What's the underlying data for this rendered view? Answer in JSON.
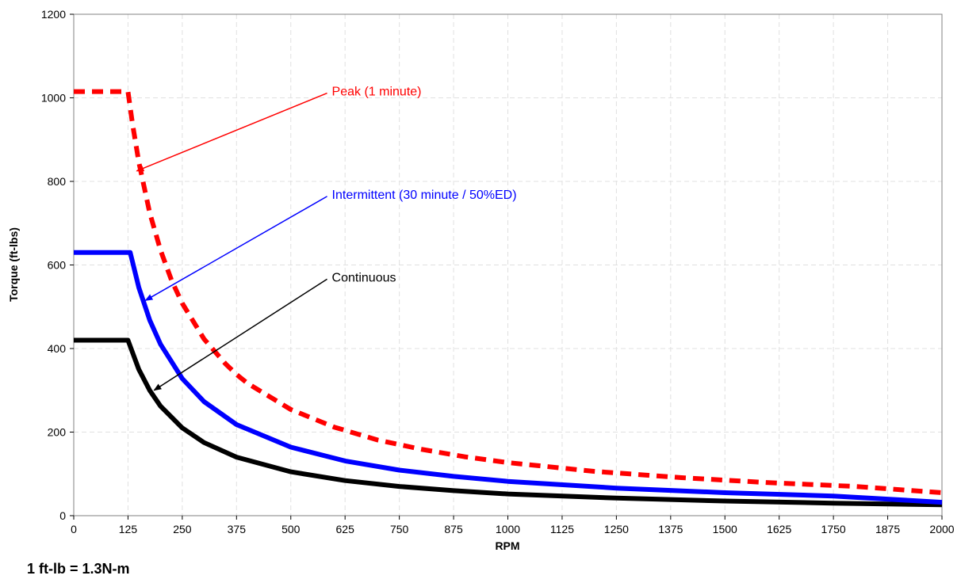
{
  "chart_data": {
    "type": "line",
    "xlabel": "RPM",
    "ylabel": "Torque (ft-lbs)",
    "xlim": [
      0,
      2000
    ],
    "ylim": [
      0,
      1200
    ],
    "x_ticks": [
      0,
      125,
      250,
      375,
      500,
      625,
      750,
      875,
      1000,
      1125,
      1250,
      1375,
      1500,
      1625,
      1750,
      1875,
      2000
    ],
    "y_ticks": [
      0,
      200,
      400,
      600,
      800,
      1000,
      1200
    ],
    "grid": true,
    "series": [
      {
        "name": "Peak (1 minute)",
        "color": "#ff0000",
        "style": "dashed",
        "x": [
          0,
          125,
          135,
          150,
          175,
          200,
          225,
          250,
          300,
          350,
          375,
          400,
          500,
          600,
          700,
          800,
          900,
          1000,
          1200,
          1400,
          1600,
          1800,
          2000
        ],
        "y": [
          1015,
          1015,
          940,
          846,
          725,
          635,
          564,
          508,
          423,
          363,
          338,
          317,
          254,
          212,
          181,
          159,
          141,
          127,
          106,
          91,
          79,
          70,
          55
        ]
      },
      {
        "name": "Intermittent (30 minute / 50%ED)",
        "color": "#0000ff",
        "style": "solid",
        "x": [
          0,
          130,
          150,
          175,
          200,
          250,
          300,
          375,
          500,
          625,
          750,
          875,
          1000,
          1250,
          1500,
          1750,
          2000
        ],
        "y": [
          630,
          630,
          546,
          468,
          410,
          328,
          273,
          218,
          164,
          131,
          109,
          94,
          82,
          66,
          55,
          47,
          32
        ]
      },
      {
        "name": "Continuous",
        "color": "#000000",
        "style": "solid",
        "x": [
          0,
          125,
          150,
          175,
          200,
          250,
          300,
          375,
          500,
          625,
          750,
          875,
          1000,
          1250,
          1500,
          1750,
          2000
        ],
        "y": [
          420,
          420,
          350,
          300,
          262,
          210,
          175,
          140,
          105,
          84,
          70,
          60,
          52,
          42,
          35,
          30,
          26
        ]
      }
    ],
    "annotations": [
      {
        "text": "Peak (1 minute)",
        "color": "#ff0000",
        "label_at": [
          580,
          1015
        ],
        "arrow_to": [
          145,
          825
        ]
      },
      {
        "text": "Intermittent (30 minute / 50%ED)",
        "color": "#0000ff",
        "label_at": [
          580,
          768
        ],
        "arrow_to": [
          165,
          515
        ]
      },
      {
        "text": "Continuous",
        "color": "#000000",
        "label_at": [
          580,
          570
        ],
        "arrow_to": [
          185,
          300
        ]
      }
    ]
  },
  "footnote": "1 ft-lb = 1.3N-m"
}
